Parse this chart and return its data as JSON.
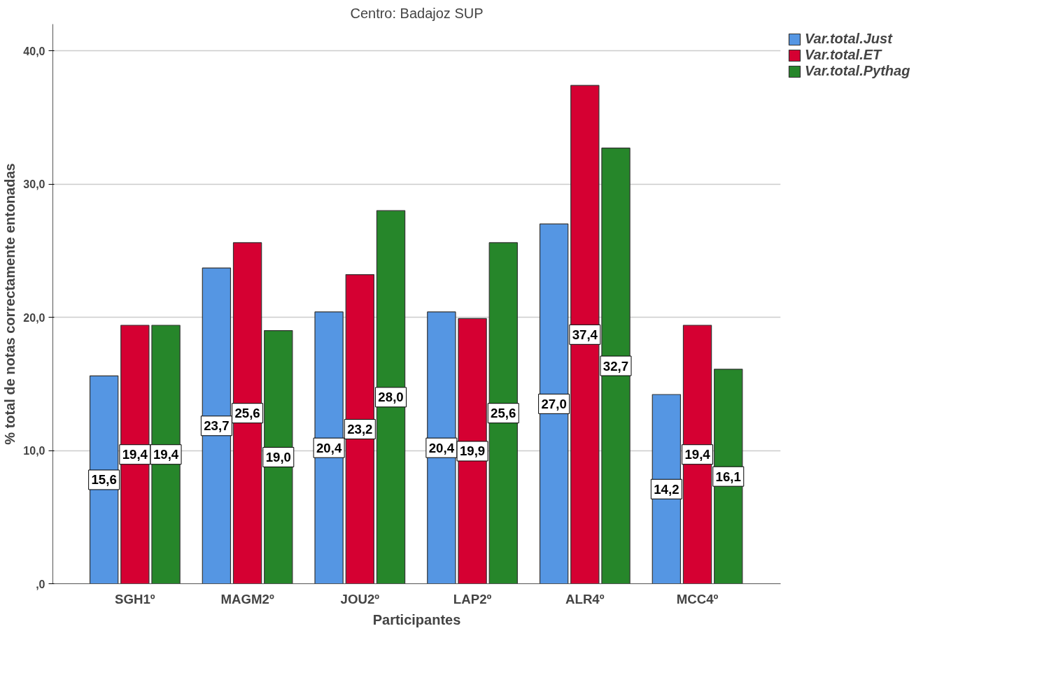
{
  "chart_data": {
    "type": "bar",
    "title": "Centro: Badajoz SUP",
    "xlabel": "Participantes",
    "ylabel": "% total de notas correctamente entonadas",
    "categories": [
      "SGH1º",
      "MAGM2º",
      "JOU2º",
      "LAP2º",
      "ALR4º",
      "MCC4º"
    ],
    "series": [
      {
        "name": "Var.total.Just",
        "color": "#5596e3",
        "values": [
          15.6,
          23.7,
          20.4,
          20.4,
          27.0,
          14.2
        ],
        "value_labels": [
          "15,6",
          "23,7",
          "20,4",
          "20,4",
          "27,0",
          "14,2"
        ]
      },
      {
        "name": "Var.total.ET",
        "color": "#d50032",
        "values": [
          19.4,
          25.6,
          23.2,
          19.9,
          37.4,
          19.4
        ],
        "value_labels": [
          "19,4",
          "25,6",
          "23,2",
          "19,9",
          "37,4",
          "19,4"
        ]
      },
      {
        "name": "Var.total.Pythag",
        "color": "#26862a",
        "values": [
          19.4,
          19.0,
          28.0,
          25.6,
          32.7,
          16.1
        ],
        "value_labels": [
          "19,4",
          "19,0",
          "28,0",
          "25,6",
          "32,7",
          "16,1"
        ]
      }
    ],
    "ylim": [
      0,
      42
    ],
    "yticks": [
      {
        "value": 0,
        "label": ",0"
      },
      {
        "value": 10,
        "label": "10,0"
      },
      {
        "value": 20,
        "label": "20,0"
      },
      {
        "value": 30,
        "label": "30,0"
      },
      {
        "value": 40,
        "label": "40,0"
      }
    ],
    "grid": "y",
    "legend": "top right"
  }
}
